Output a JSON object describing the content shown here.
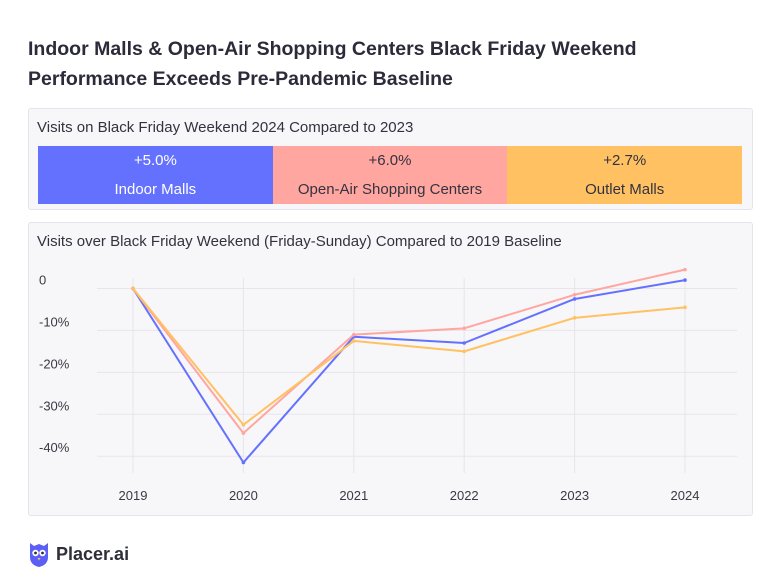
{
  "title": "Indoor Malls & Open-Air Shopping Centers Black Friday Weekend Performance Exceeds Pre-Pandemic Baseline",
  "summary": {
    "heading": "Visits on Black Friday Weekend 2024 Compared to 2023",
    "tiles": [
      {
        "value": "+5.0%",
        "label": "Indoor Malls",
        "color": "#6471ff"
      },
      {
        "value": "+6.0%",
        "label": "Open-Air Shopping Centers",
        "color": "#ffa6a0"
      },
      {
        "value": "+2.7%",
        "label": "Outlet Malls",
        "color": "#ffc162"
      }
    ]
  },
  "chart_data": {
    "type": "line",
    "title": "Visits over Black Friday Weekend (Friday-Sunday) Compared to 2019 Baseline",
    "categories": [
      "2019",
      "2020",
      "2021",
      "2022",
      "2023",
      "2024"
    ],
    "y_ticks": [
      0,
      -10,
      -20,
      -30,
      -40
    ],
    "y_tick_labels": [
      "0",
      "-10%",
      "-20%",
      "-30%",
      "-40%"
    ],
    "ylim": [
      -44,
      2.5
    ],
    "grid": true,
    "series": [
      {
        "name": "Indoor Malls",
        "color": "#6471ff",
        "values": [
          0,
          -41.5,
          -11.5,
          -13,
          -2.5,
          2
        ]
      },
      {
        "name": "Open-Air Shopping Centers",
        "color": "#ffa6a0",
        "values": [
          0,
          -34.5,
          -11,
          -9.5,
          -1.5,
          4.5
        ]
      },
      {
        "name": "Outlet Malls",
        "color": "#ffc162",
        "values": [
          0,
          -32.5,
          -12.5,
          -15,
          -7,
          -4.5
        ]
      }
    ]
  },
  "footer": {
    "brand": "Placer.ai",
    "icon": "owl-icon",
    "brand_color": "#5c5ff6"
  }
}
